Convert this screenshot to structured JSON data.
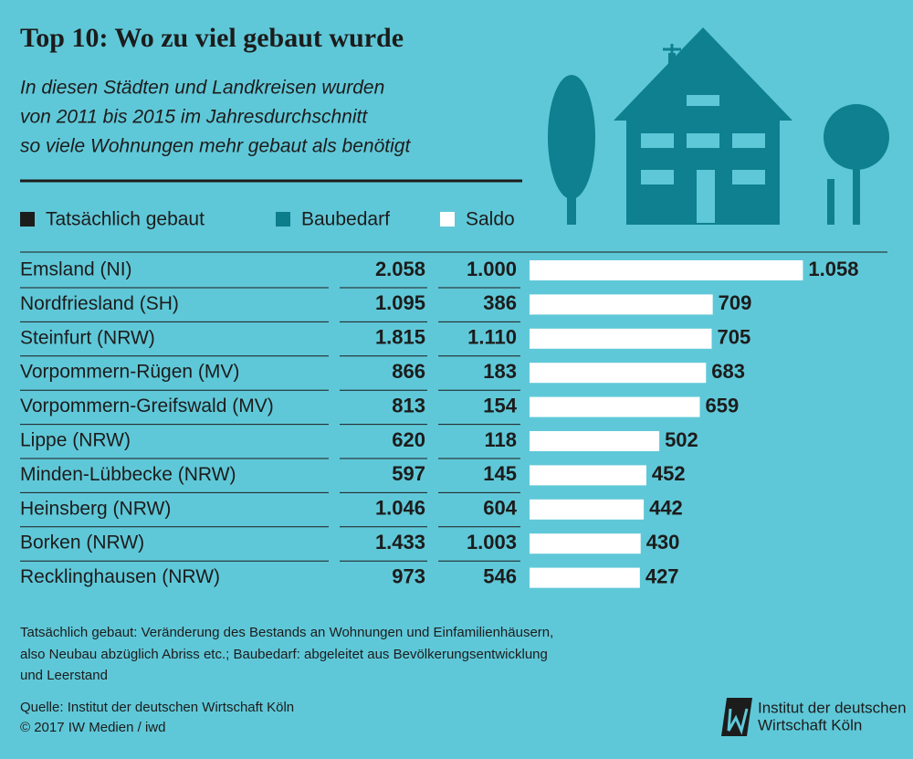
{
  "chart_data": {
    "type": "bar",
    "title": "Top 10: Wo zu viel gebaut wurde",
    "subtitle": [
      "In diesen Städten und Landkreisen wurden",
      "von 2011 bis 2015 im Jahresdurchschnitt",
      "so viele Wohnungen mehr gebaut als benötigt"
    ],
    "categories": [
      "Emsland (NI)",
      "Nordfriesland (SH)",
      "Steinfurt (NRW)",
      "Vorpommern-Rügen (MV)",
      "Vorpommern-Greifswald (MV)",
      "Lippe (NRW)",
      "Minden-Lübbecke (NRW)",
      "Heinsberg (NRW)",
      "Borken (NRW)",
      "Recklinghausen (NRW)"
    ],
    "series": [
      {
        "name": "Tatsächlich gebaut",
        "color": "#1c1c1c",
        "values": [
          2058,
          1095,
          1815,
          866,
          813,
          620,
          597,
          1046,
          1433,
          973
        ],
        "value_labels": [
          "2.058",
          "1.095",
          "1.815",
          "866",
          "813",
          "620",
          "597",
          "1.046",
          "1.433",
          "973"
        ]
      },
      {
        "name": "Baubedarf",
        "color": "#0b7d8b",
        "values": [
          1000,
          386,
          1110,
          183,
          154,
          118,
          145,
          604,
          1003,
          546
        ],
        "value_labels": [
          "1.000",
          "386",
          "1.110",
          "183",
          "154",
          "118",
          "145",
          "604",
          "1.003",
          "546"
        ]
      },
      {
        "name": "Saldo",
        "color": "#ffffff",
        "values": [
          1058,
          709,
          705,
          683,
          659,
          502,
          452,
          442,
          430,
          427
        ],
        "value_labels": [
          "1.058",
          "709",
          "705",
          "683",
          "659",
          "502",
          "452",
          "442",
          "430",
          "427"
        ]
      }
    ],
    "notes": [
      "Tatsächlich gebaut: Veränderung des Bestands an Wohnungen und Einfamilienhäusern,",
      "also Neubau abzüglich Abriss etc.; Baubedarf: abgeleitet aus Bevölkerungsentwicklung",
      "und Leerstand"
    ],
    "source": [
      "Quelle: Institut der deutschen Wirtschaft Köln",
      "© 2017 IW Medien / iwd"
    ],
    "logo": [
      "Institut der deutschen",
      "Wirtschaft Köln"
    ]
  }
}
